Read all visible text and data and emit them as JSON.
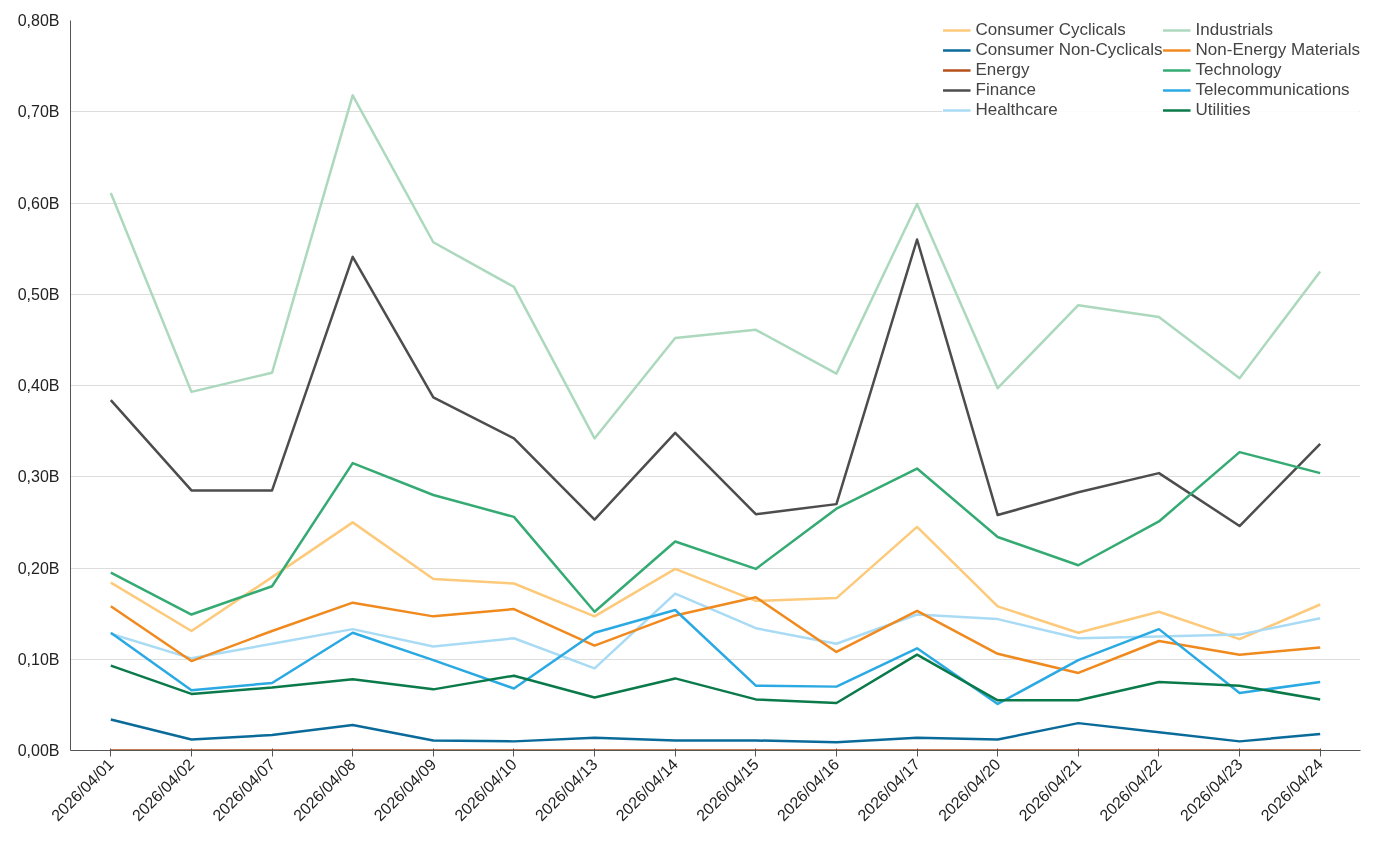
{
  "chart_data": {
    "type": "line",
    "categories": [
      "2026/04/01",
      "2026/04/02",
      "2026/04/07",
      "2026/04/08",
      "2026/04/09",
      "2026/04/10",
      "2026/04/13",
      "2026/04/14",
      "2026/04/15",
      "2026/04/16",
      "2026/04/17",
      "2026/04/20",
      "2026/04/21",
      "2026/04/22",
      "2026/04/23",
      "2026/04/24"
    ],
    "ylim": [
      0,
      0.8
    ],
    "yticks": [
      {
        "value": 0,
        "label": "0,00B"
      },
      {
        "value": 0.1,
        "label": "0,10B"
      },
      {
        "value": 0.2,
        "label": "0,20B"
      },
      {
        "value": 0.3,
        "label": "0,30B"
      },
      {
        "value": 0.4,
        "label": "0,40B"
      },
      {
        "value": 0.5,
        "label": "0,50B"
      },
      {
        "value": 0.6,
        "label": "0,60B"
      },
      {
        "value": 0.7,
        "label": "0,70B"
      },
      {
        "value": 0.8,
        "label": "0,80B"
      }
    ],
    "grid": "y",
    "legend": "top right",
    "marker": "none",
    "line_style": "solid",
    "series": [
      {
        "name": "Consumer Cyclicals",
        "color": "#fdc97a",
        "values": [
          0.184,
          0.131,
          0.19,
          0.25,
          0.188,
          0.183,
          0.147,
          0.199,
          0.164,
          0.167,
          0.245,
          0.158,
          0.129,
          0.152,
          0.122,
          0.16
        ]
      },
      {
        "name": "Consumer Non-Cyclicals",
        "color": "#0a6b9a",
        "values": [
          0.034,
          0.012,
          0.017,
          0.028,
          0.011,
          0.01,
          0.014,
          0.011,
          0.011,
          0.009,
          0.014,
          0.012,
          0.03,
          0.02,
          0.01,
          0.018
        ]
      },
      {
        "name": "Energy",
        "color": "#b5501a",
        "values": [
          0,
          0,
          0,
          0,
          0,
          0,
          0,
          0,
          0,
          0,
          0,
          0,
          0,
          0,
          0,
          0
        ]
      },
      {
        "name": "Finance",
        "color": "#4d4d4d",
        "values": [
          0.384,
          0.285,
          0.285,
          0.541,
          0.387,
          0.342,
          0.253,
          0.348,
          0.259,
          0.27,
          0.56,
          0.258,
          0.283,
          0.304,
          0.246,
          0.336
        ]
      },
      {
        "name": "Healthcare",
        "color": "#a9dbf5",
        "values": [
          0.128,
          0.101,
          0.117,
          0.133,
          0.114,
          0.123,
          0.09,
          0.172,
          0.134,
          0.117,
          0.149,
          0.144,
          0.123,
          0.125,
          0.127,
          0.145
        ]
      },
      {
        "name": "Industrials",
        "color": "#acd9bd",
        "values": [
          0.611,
          0.393,
          0.414,
          0.718,
          0.557,
          0.508,
          0.342,
          0.452,
          0.461,
          0.413,
          0.599,
          0.397,
          0.488,
          0.475,
          0.408,
          0.525
        ]
      },
      {
        "name": "Non-Energy Materials",
        "color": "#f08a1e",
        "values": [
          0.158,
          0.098,
          0.131,
          0.162,
          0.147,
          0.155,
          0.115,
          0.148,
          0.168,
          0.108,
          0.153,
          0.106,
          0.085,
          0.12,
          0.105,
          0.113
        ]
      },
      {
        "name": "Technology",
        "color": "#35ab73",
        "values": [
          0.195,
          0.149,
          0.18,
          0.315,
          0.28,
          0.256,
          0.152,
          0.229,
          0.199,
          0.265,
          0.309,
          0.234,
          0.203,
          0.251,
          0.327,
          0.304
        ]
      },
      {
        "name": "Telecommunications",
        "color": "#2aa9e3",
        "values": [
          0.129,
          0.066,
          0.074,
          0.129,
          0.099,
          0.068,
          0.129,
          0.154,
          0.071,
          0.07,
          0.112,
          0.051,
          0.099,
          0.133,
          0.063,
          0.075
        ]
      },
      {
        "name": "Utilities",
        "color": "#0a7a4a",
        "values": [
          0.093,
          0.062,
          0.069,
          0.078,
          0.067,
          0.082,
          0.058,
          0.079,
          0.056,
          0.052,
          0.105,
          0.055,
          0.055,
          0.075,
          0.071,
          0.056
        ]
      }
    ]
  }
}
